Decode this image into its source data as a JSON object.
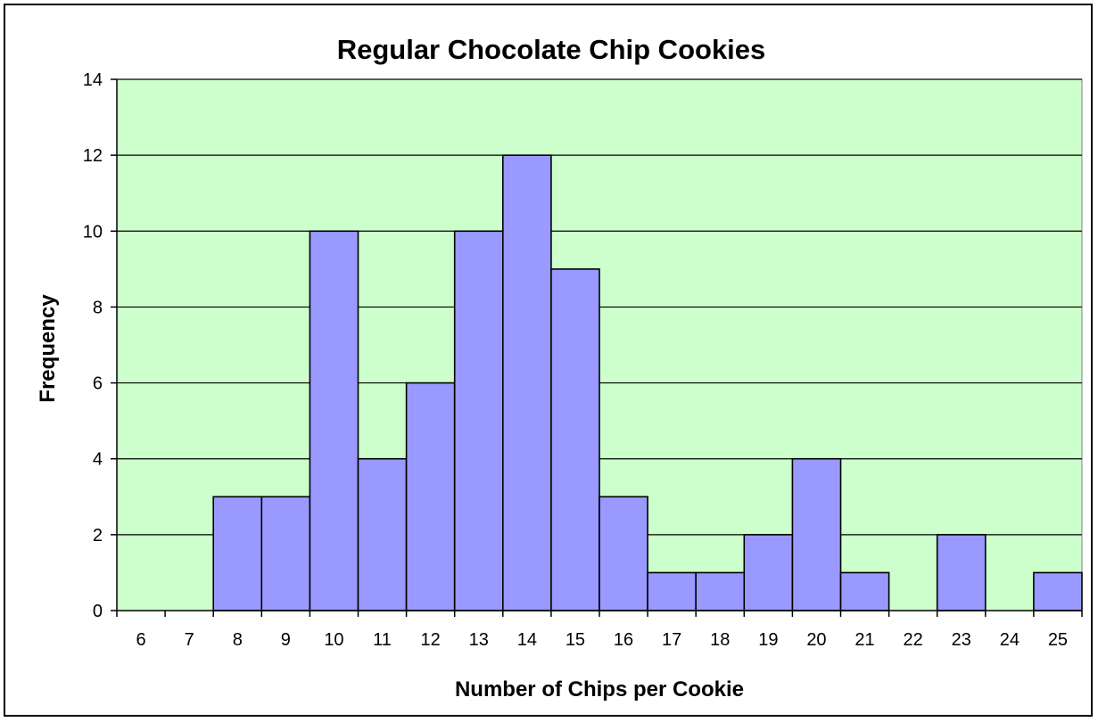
{
  "chart_data": {
    "type": "bar",
    "title": "Regular Chocolate Chip Cookies",
    "xlabel": "Number of Chips per Cookie",
    "ylabel": "Frequency",
    "categories": [
      "6",
      "7",
      "8",
      "9",
      "10",
      "11",
      "12",
      "13",
      "14",
      "15",
      "16",
      "17",
      "18",
      "19",
      "20",
      "21",
      "22",
      "23",
      "24",
      "25"
    ],
    "values": [
      0,
      0,
      3,
      3,
      10,
      4,
      6,
      10,
      12,
      9,
      3,
      1,
      1,
      2,
      4,
      1,
      0,
      2,
      0,
      1
    ],
    "ylim": [
      0,
      14
    ],
    "yticks": [
      0,
      2,
      4,
      6,
      8,
      10,
      12,
      14
    ],
    "grid": true,
    "legend": "none",
    "colors": {
      "plot_background": "#CCFFCC",
      "bar_fill": "#9999FF",
      "bar_stroke": "#000000",
      "gridline": "#000000"
    }
  }
}
